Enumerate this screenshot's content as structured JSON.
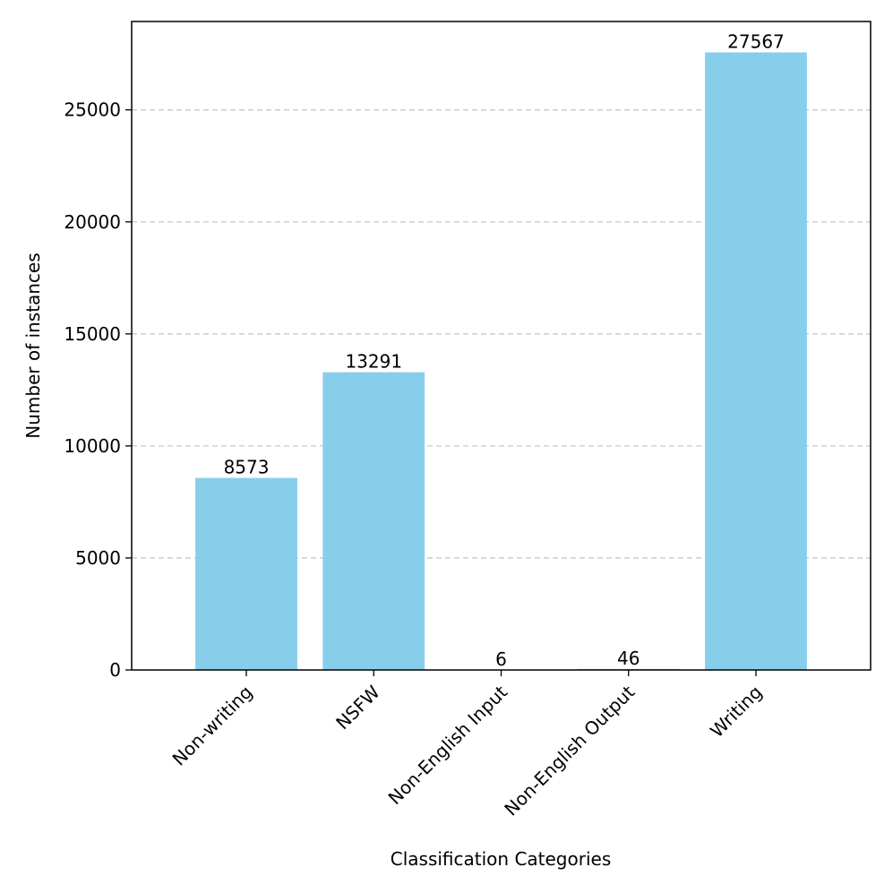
{
  "chart_data": {
    "type": "bar",
    "categories": [
      "Non-writing",
      "NSFW",
      "Non-English Input",
      "Non-English Output",
      "Writing"
    ],
    "values": [
      8573,
      13291,
      6,
      46,
      27567
    ],
    "data_labels": [
      "8573",
      "13291",
      "6",
      "46",
      "27567"
    ],
    "title": "",
    "xlabel": "Classification Categories",
    "ylabel": "Number of instances",
    "ylim": [
      0,
      28946
    ],
    "yticks": [
      0,
      5000,
      10000,
      15000,
      20000,
      25000
    ],
    "ytick_labels": [
      "0",
      "5000",
      "10000",
      "15000",
      "20000",
      "25000"
    ],
    "grid": "y-dashed",
    "bar_color": "#87ceeb",
    "grid_color": "#c8c8c8",
    "axis_color": "#000000"
  }
}
